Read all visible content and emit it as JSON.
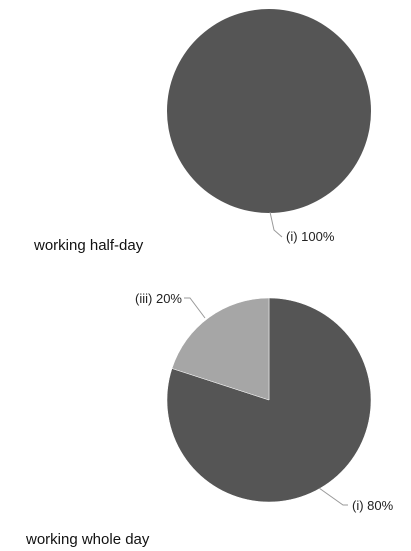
{
  "chart_data": [
    {
      "type": "pie",
      "title": "working half-day",
      "categories": [
        "(i)"
      ],
      "values": [
        100
      ],
      "value_labels": [
        "(i) 100%"
      ],
      "colors": [
        "#555555"
      ]
    },
    {
      "type": "pie",
      "title": "working whole day",
      "categories": [
        "(i)",
        "(iii)"
      ],
      "values": [
        80,
        20
      ],
      "value_labels": [
        "(i) 80%",
        "(iii) 20%"
      ],
      "colors": [
        "#555555",
        "#a6a6a6"
      ]
    }
  ]
}
